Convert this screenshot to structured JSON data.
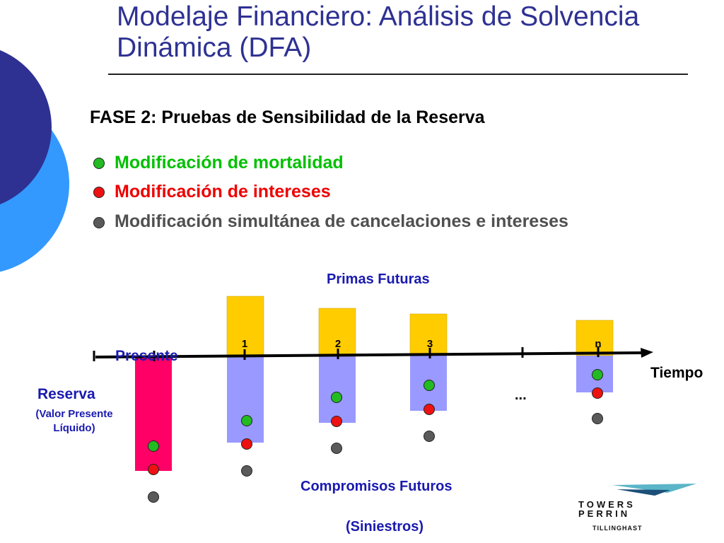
{
  "title": "Modelaje Financiero: Análisis de Solvencia Dinámica (DFA)",
  "phase_heading": "FASE 2: Pruebas de Sensibilidad de la Reserva",
  "bullets": [
    {
      "label": "Modificación de mortalidad",
      "color": "#00C000",
      "dot": "#22BB22"
    },
    {
      "label": "Modificación de intereses",
      "color": "#EE0000",
      "dot": "#EE1111"
    },
    {
      "label": "Modificación simultánea de cancelaciones e intereses",
      "color": "#505050",
      "dot": "#5A5A5A"
    }
  ],
  "diagram": {
    "premiums_label": "Primas Futuras",
    "present_label": "Presente",
    "time_label": "Tiempo",
    "ellipsis_label": "...",
    "reserve_label": "Reserva",
    "reserve_sub": "(Valor Presente Líquido)",
    "commitments_label": "Compromisos Futuros",
    "claims_label": "(Siniestros)",
    "periods": [
      "1",
      "2",
      "3",
      "n"
    ]
  },
  "colors": {
    "title": "#2E3192",
    "reserve_bar": "#FF0066",
    "premium_bar": "#FFCC00",
    "commitment_bar": "#9999FF",
    "deco_dark": "#2E3192",
    "deco_light": "#3399FF"
  },
  "logo": {
    "line1": "TOWERS",
    "line2": "PERRIN",
    "line3": "TILLINGHAST"
  }
}
